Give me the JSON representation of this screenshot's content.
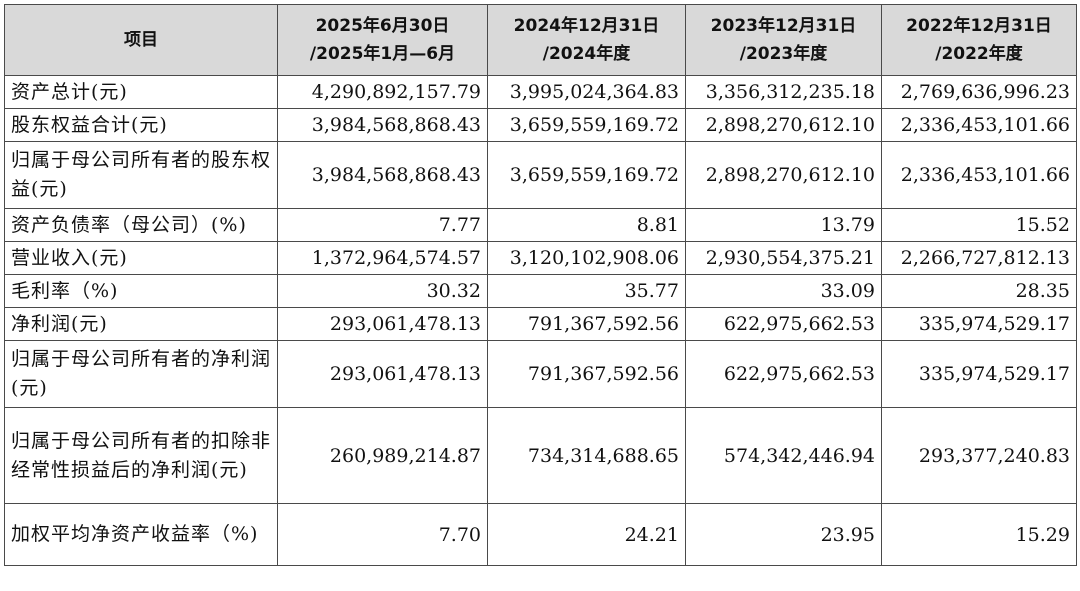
{
  "table": {
    "header": {
      "item": "项目",
      "periods": [
        [
          "2025年6月30日",
          "/2025年1月—6月"
        ],
        [
          "2024年12月31日",
          "/2024年度"
        ],
        [
          "2023年12月31日",
          "/2023年度"
        ],
        [
          "2022年12月31日",
          "/2022年度"
        ]
      ]
    },
    "rows": [
      {
        "label": "资产总计(元)",
        "values": [
          "4,290,892,157.79",
          "3,995,024,364.83",
          "3,356,312,235.18",
          "2,769,636,996.23"
        ]
      },
      {
        "label": "股东权益合计(元)",
        "values": [
          "3,984,568,868.43",
          "3,659,559,169.72",
          "2,898,270,612.10",
          "2,336,453,101.66"
        ]
      },
      {
        "label": "归属于母公司所有者的股东权益(元)",
        "values": [
          "3,984,568,868.43",
          "3,659,559,169.72",
          "2,898,270,612.10",
          "2,336,453,101.66"
        ]
      },
      {
        "label": "资产负债率（母公司）(%)",
        "values": [
          "7.77",
          "8.81",
          "13.79",
          "15.52"
        ]
      },
      {
        "label": "营业收入(元)",
        "values": [
          "1,372,964,574.57",
          "3,120,102,908.06",
          "2,930,554,375.21",
          "2,266,727,812.13"
        ]
      },
      {
        "label": "毛利率（%)",
        "values": [
          "30.32",
          "35.77",
          "33.09",
          "28.35"
        ]
      },
      {
        "label": "净利润(元)",
        "values": [
          "293,061,478.13",
          "791,367,592.56",
          "622,975,662.53",
          "335,974,529.17"
        ]
      },
      {
        "label": "归属于母公司所有者的净利润(元)",
        "values": [
          "293,061,478.13",
          "791,367,592.56",
          "622,975,662.53",
          "335,974,529.17"
        ]
      },
      {
        "label": "归属于母公司所有者的扣除非经常性损益后的净利润(元)",
        "values": [
          "260,989,214.87",
          "734,314,688.65",
          "574,342,446.94",
          "293,377,240.83"
        ]
      },
      {
        "label": "加权平均净资产收益率（%)",
        "values": [
          "7.70",
          "24.21",
          "23.95",
          "15.29"
        ]
      }
    ]
  }
}
